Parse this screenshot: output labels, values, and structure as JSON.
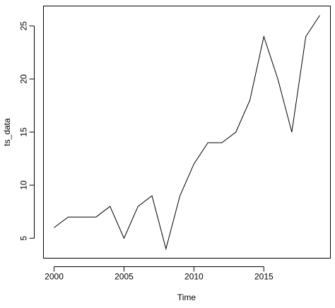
{
  "chart_data": {
    "type": "line",
    "title": "",
    "xlabel": "Time",
    "ylabel": "ts_data",
    "xlim": [
      1999.24,
      2019.76
    ],
    "ylim": [
      3.12,
      26.88
    ],
    "xticks": [
      2000,
      2005,
      2010,
      2015
    ],
    "yticks": [
      5,
      10,
      15,
      20,
      25
    ],
    "xtick_labels": [
      "2000",
      "2005",
      "2010",
      "2015"
    ],
    "ytick_labels": [
      "5",
      "10",
      "15",
      "20",
      "25"
    ],
    "grid": false,
    "legend": "none",
    "series": [
      {
        "x": [
          2000,
          2001,
          2002,
          2003,
          2004,
          2005,
          2006,
          2007,
          2008,
          2009,
          2010,
          2011,
          2012,
          2013,
          2014,
          2015,
          2016,
          2017,
          2018,
          2019
        ],
        "values": [
          6,
          7,
          7,
          7,
          8,
          5,
          8,
          9,
          4,
          9,
          12,
          14,
          14,
          15,
          18,
          24,
          20,
          15,
          24,
          26
        ]
      }
    ]
  }
}
